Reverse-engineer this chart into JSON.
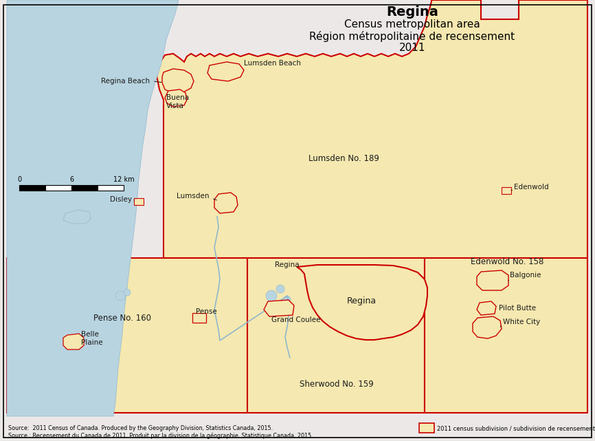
{
  "title_line1": "Regina",
  "title_line2": "Census metropolitan area",
  "title_line3": "Région métropolitaine de recensement",
  "title_line4": "2011",
  "bg_color": "#ece8e8",
  "map_yellow": "#f5e8b0",
  "water_blue": "#b8d4e0",
  "border_red": "#cc0000",
  "border_dark": "#333333",
  "label_color": "#1a1a1a",
  "source_text1": "Source:  2011 Census of Canada. Produced by the Geography Division, Statistics Canada, 2015.",
  "source_text2": "Source : Recensement du Canada de 2011. Produit par la division de la géographie, Statistique Canada, 2015.",
  "legend_text": "2011 census subdivision / subdivision de recensement",
  "figsize": [
    8.66,
    6.41
  ],
  "dpi": 100
}
